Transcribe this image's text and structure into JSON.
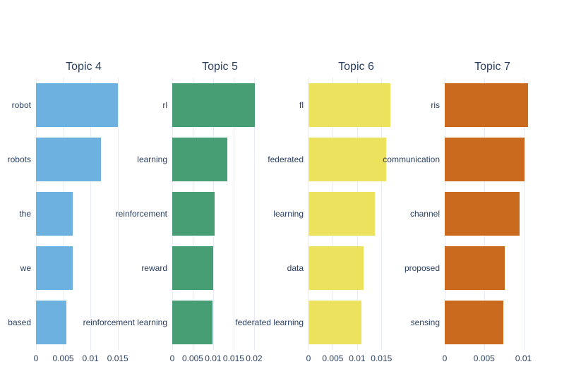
{
  "figure": {
    "background": "#ffffff",
    "text_color": "#2a3f5f",
    "grid_color": "#e8ecf4",
    "grid_on": true
  },
  "chart_data": [
    {
      "type": "bar",
      "orientation": "horizontal",
      "title": "Topic 4",
      "categories": [
        "robot",
        "robots",
        "the",
        "we",
        "based"
      ],
      "values": [
        0.0151,
        0.0119,
        0.0068,
        0.0067,
        0.0056
      ],
      "color": "#6DB1E1",
      "xticks": [
        0,
        0.005,
        0.01,
        0.015
      ],
      "xtick_labels": [
        "0",
        "0.005",
        "0.01",
        "0.015"
      ],
      "xlim": [
        0,
        0.0175
      ],
      "ylabel": "",
      "xlabel": ""
    },
    {
      "type": "bar",
      "orientation": "horizontal",
      "title": "Topic 5",
      "categories": [
        "rl",
        "learning",
        "reinforcement",
        "reward",
        "reinforcement learning"
      ],
      "values": [
        0.0202,
        0.0134,
        0.0104,
        0.01,
        0.0099
      ],
      "color": "#479E75",
      "xticks": [
        0,
        0.005,
        0.01,
        0.015,
        0.02
      ],
      "xtick_labels": [
        "0",
        "0.005",
        "0.01",
        "0.015",
        "0.02"
      ],
      "xlim": [
        0,
        0.0233
      ],
      "ylabel": "",
      "xlabel": ""
    },
    {
      "type": "bar",
      "orientation": "horizontal",
      "title": "Topic 6",
      "categories": [
        "fl",
        "federated",
        "learning",
        "data",
        "federated learning"
      ],
      "values": [
        0.0169,
        0.0159,
        0.0136,
        0.0113,
        0.0109
      ],
      "color": "#ECE25E",
      "xticks": [
        0,
        0.005,
        0.01,
        0.015
      ],
      "xtick_labels": [
        "0",
        "0.005",
        "0.01",
        "0.015"
      ],
      "xlim": [
        0,
        0.0196
      ],
      "ylabel": "",
      "xlabel": ""
    },
    {
      "type": "bar",
      "orientation": "horizontal",
      "title": "Topic 7",
      "categories": [
        "ris",
        "communication",
        "channel",
        "proposed",
        "sensing"
      ],
      "values": [
        0.0106,
        0.0101,
        0.0095,
        0.0076,
        0.0074
      ],
      "color": "#C96A1E",
      "xticks": [
        0,
        0.005,
        0.01
      ],
      "xtick_labels": [
        "0",
        "0.005",
        "0.01"
      ],
      "xlim": [
        0,
        0.0121
      ],
      "ylabel": "",
      "xlabel": ""
    }
  ]
}
